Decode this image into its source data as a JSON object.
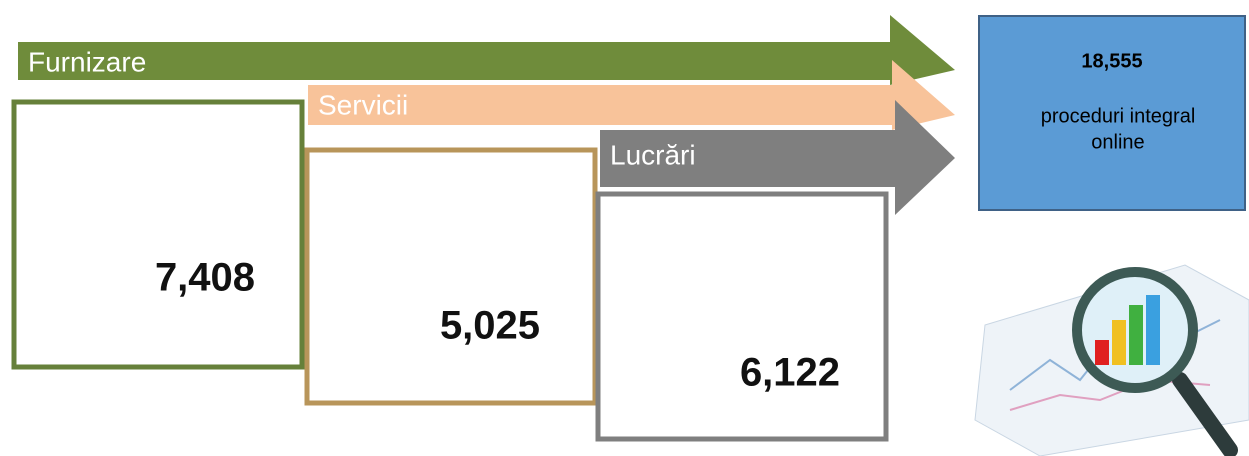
{
  "categories": [
    {
      "label": "Furnizare",
      "value": "7,408"
    },
    {
      "label": "Servicii",
      "value": "5,025"
    },
    {
      "label": "Lucrări",
      "value": "6,122"
    }
  ],
  "total": {
    "value": "18,555",
    "caption": [
      "proceduri integral",
      "online"
    ]
  }
}
